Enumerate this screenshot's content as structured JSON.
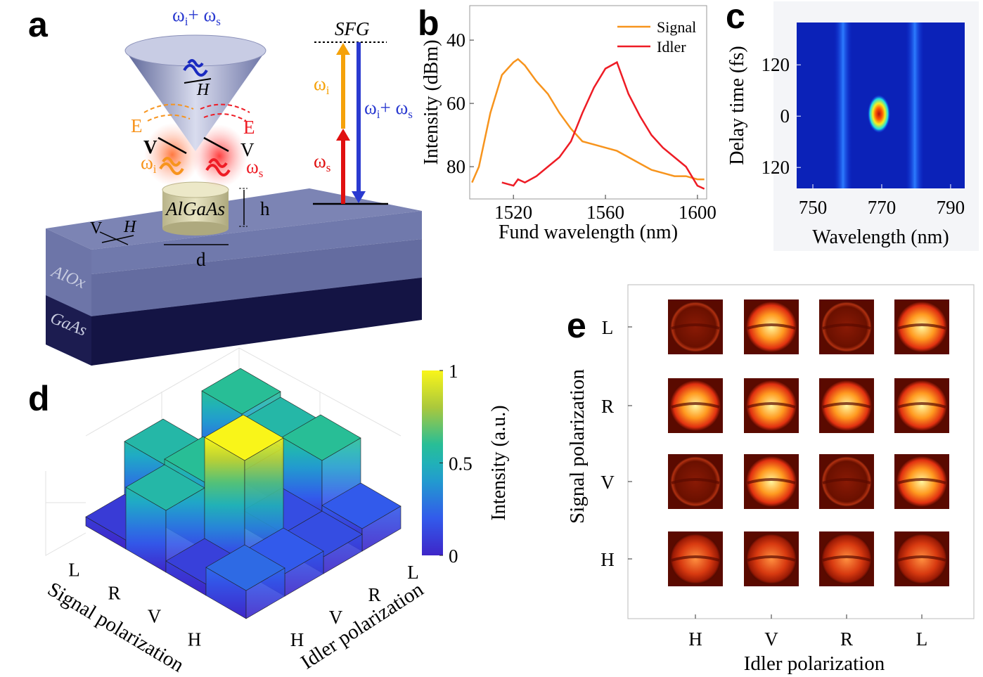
{
  "panel_labels": [
    "a",
    "b",
    "c",
    "d",
    "e"
  ],
  "diagram_a": {
    "cone_label": [
      "ω",
      "i",
      "+ ω",
      "s"
    ],
    "cone_H": "H",
    "E_left": "E",
    "E_right": "E",
    "V_left": "V",
    "V_right": "V",
    "omega_i": [
      "ω",
      "i"
    ],
    "omega_s": [
      "ω",
      "s"
    ],
    "pillar": "AlGaAs",
    "h": "h",
    "d": "d",
    "pol_V": "V",
    "pol_H": "H",
    "layer1": "AlOx",
    "layer2": "GaAs",
    "sfg": "SFG",
    "level_i": [
      "ω",
      "i"
    ],
    "level_s": [
      "ω",
      "s"
    ],
    "level_sum": [
      "ω",
      "i",
      "+ ω",
      "s"
    ]
  },
  "chart_data": [
    {
      "type": "line",
      "xlabel": "Fund wavelength (nm)",
      "ylabel": "Intensity (dBm)",
      "x": [
        1502,
        1505,
        1510,
        1515,
        1520,
        1522,
        1525,
        1530,
        1535,
        1540,
        1545,
        1550,
        1555,
        1560,
        1565,
        1570,
        1575,
        1580,
        1585,
        1590,
        1595,
        1600,
        1603
      ],
      "series": [
        {
          "name": "Signal",
          "color": "#f7941d",
          "values": [
            -85,
            -80,
            -63,
            -51,
            -47,
            -46,
            -48,
            -53,
            -57,
            -63,
            -68,
            -72,
            -73,
            -74,
            -75,
            -77,
            -79,
            -81,
            -82,
            -83,
            -83,
            -84,
            -84
          ]
        },
        {
          "name": "Idler",
          "color": "#ee1c25",
          "values": [
            null,
            null,
            null,
            -85,
            -86,
            -84,
            -85,
            -83,
            -80,
            -77,
            -72,
            -63,
            -55,
            -49,
            -47,
            -57,
            -64,
            -70,
            -74,
            -77,
            -80,
            -86,
            -87
          ]
        }
      ],
      "xlim": [
        1501,
        1604
      ],
      "ylim": [
        -90.2,
        -29.1
      ],
      "xticks": [
        1520,
        1560,
        1600
      ],
      "yticks": [
        {
          "value": -40,
          "label": "40"
        },
        {
          "value": -60,
          "label": "60"
        },
        {
          "value": -80,
          "label": "80"
        }
      ],
      "legend": "upper right"
    },
    {
      "type": "heatmap",
      "xlabel": "Wavelength (nm)",
      "ylabel": "Delay time (fs)",
      "xlim": [
        745.3,
        794.1
      ],
      "ylim": [
        -169,
        219
      ],
      "xticks": [
        750,
        770,
        790
      ],
      "yticks": [
        120,
        0,
        {
          "value": -120,
          "label": "120"
        }
      ]
    },
    {
      "type": "bar3d",
      "xlabel": "Signal polarization",
      "ylabel": "Idler polarization",
      "signal_categories": [
        "L",
        "R",
        "V",
        "H"
      ],
      "idler_categories": [
        "H",
        "V",
        "R",
        "L"
      ],
      "values": [
        [
          0.08,
          0.55,
          0.08,
          0.6
        ],
        [
          0.55,
          0.6,
          0.5,
          0.55
        ],
        [
          0.1,
          1.0,
          0.15,
          0.6
        ],
        [
          0.25,
          0.2,
          0.15,
          0.2
        ]
      ],
      "colorbar_label": "Intensity (a.u.)",
      "clim": [
        0,
        1
      ],
      "cticks": [
        0,
        0.5,
        1
      ]
    }
  ],
  "panel_e": {
    "xlabel": "Idler polarization",
    "ylabel": "Signal polarization",
    "columns": [
      "H",
      "V",
      "R",
      "L"
    ],
    "rows": [
      "L",
      "R",
      "V",
      "H"
    ]
  }
}
